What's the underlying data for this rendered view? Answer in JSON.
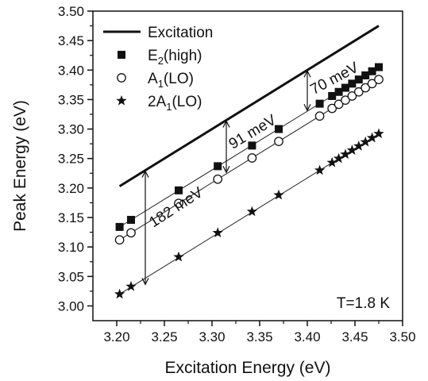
{
  "chart_data": {
    "type": "scatter",
    "xlabel": "Excitation Energy (eV)",
    "ylabel": "Peak Energy (eV)",
    "xlim": [
      3.175,
      3.5
    ],
    "ylim": [
      2.975,
      3.5
    ],
    "x_ticks": [
      3.2,
      3.25,
      3.3,
      3.35,
      3.4,
      3.45,
      3.5
    ],
    "y_ticks": [
      3.0,
      3.05,
      3.1,
      3.15,
      3.2,
      3.25,
      3.3,
      3.35,
      3.4,
      3.45,
      3.5
    ],
    "x_tick_labels": [
      "3.20",
      "3.25",
      "3.30",
      "3.35",
      "3.40",
      "3.45",
      "3.50"
    ],
    "y_tick_labels": [
      "3.00",
      "3.05",
      "3.10",
      "3.15",
      "3.20",
      "3.25",
      "3.30",
      "3.35",
      "3.40",
      "3.45",
      "3.50"
    ],
    "legend_position": "top-left",
    "annotation": "T=1.8 K",
    "excitation": {
      "name": "Excitation",
      "x": [
        3.203,
        3.475
      ],
      "y": [
        3.203,
        3.475
      ]
    },
    "series": [
      {
        "name": "E",
        "sub": "2",
        "suffix": "(high)",
        "marker": "square",
        "x": [
          3.203,
          3.215,
          3.265,
          3.306,
          3.342,
          3.37,
          3.413,
          3.426,
          3.433,
          3.44,
          3.447,
          3.454,
          3.461,
          3.468,
          3.475
        ],
        "y": [
          3.134,
          3.146,
          3.196,
          3.237,
          3.272,
          3.3,
          3.343,
          3.356,
          3.363,
          3.37,
          3.377,
          3.384,
          3.391,
          3.398,
          3.405
        ]
      },
      {
        "name": "A",
        "sub": "1",
        "suffix": "(LO)",
        "marker": "circle",
        "x": [
          3.203,
          3.215,
          3.265,
          3.306,
          3.342,
          3.37,
          3.413,
          3.426,
          3.433,
          3.44,
          3.447,
          3.454,
          3.461,
          3.468,
          3.475
        ],
        "y": [
          3.112,
          3.124,
          3.174,
          3.215,
          3.251,
          3.279,
          3.322,
          3.335,
          3.342,
          3.349,
          3.356,
          3.363,
          3.37,
          3.377,
          3.384
        ]
      },
      {
        "name": "2A",
        "sub": "1",
        "suffix": "(LO)",
        "marker": "star",
        "x": [
          3.203,
          3.215,
          3.265,
          3.306,
          3.342,
          3.37,
          3.413,
          3.426,
          3.433,
          3.44,
          3.447,
          3.454,
          3.461,
          3.468,
          3.475
        ],
        "y": [
          3.02,
          3.033,
          3.083,
          3.124,
          3.16,
          3.188,
          3.23,
          3.243,
          3.25,
          3.257,
          3.264,
          3.271,
          3.278,
          3.285,
          3.292
        ]
      }
    ],
    "arrows": [
      {
        "label": "182 meV",
        "x": 3.23,
        "y_top": 3.23,
        "y_bottom": 3.035
      },
      {
        "label": "91 meV",
        "x": 3.315,
        "y_top": 3.315,
        "y_bottom": 3.225
      },
      {
        "label": "70 meV",
        "x": 3.4,
        "y_top": 3.4,
        "y_bottom": 3.33
      }
    ]
  }
}
